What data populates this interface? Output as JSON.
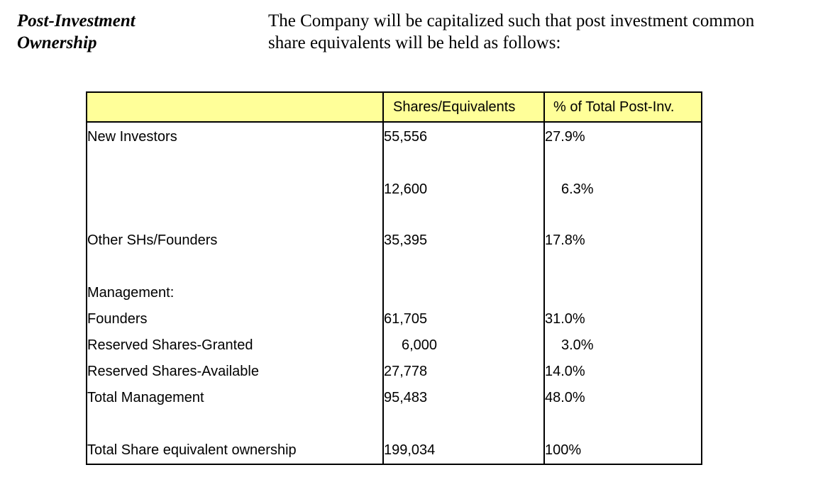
{
  "section": {
    "heading_line1": "Post-Investment",
    "heading_line2": "Ownership",
    "intro_line1": "The Company will be capitalized such that post investment common",
    "intro_line2": "share equivalents will be held as follows:"
  },
  "table": {
    "headers": {
      "label": "",
      "shares": "Shares/Equivalents",
      "pct": "% of Total Post-Inv."
    },
    "rows": {
      "new_investors": {
        "label": "New Investors",
        "shares": "55,556",
        "pct": "27.9%"
      },
      "unlabeled": {
        "label": "",
        "shares": "12,600",
        "pct": "6.3%"
      },
      "other_shs": {
        "label": "Other SHs/Founders",
        "shares": "35,395",
        "pct": "17.8%"
      },
      "management": {
        "label": "Management:",
        "shares": "",
        "pct": ""
      },
      "founders": {
        "label": "Founders",
        "shares": "61,705",
        "pct": "31.0%"
      },
      "reserved_granted": {
        "label": "Reserved Shares-Granted",
        "shares": "6,000",
        "pct": "3.0%"
      },
      "reserved_available": {
        "label": "Reserved Shares-Available",
        "shares": "27,778",
        "pct": "14.0%"
      },
      "total_management": {
        "label": "Total Management",
        "shares": "95,483",
        "pct": "48.0%"
      },
      "total": {
        "label": "Total Share equivalent ownership",
        "shares": "199,034",
        "pct": "100%"
      }
    }
  },
  "colors": {
    "header_background": "#ffff99",
    "border": "#000000"
  }
}
